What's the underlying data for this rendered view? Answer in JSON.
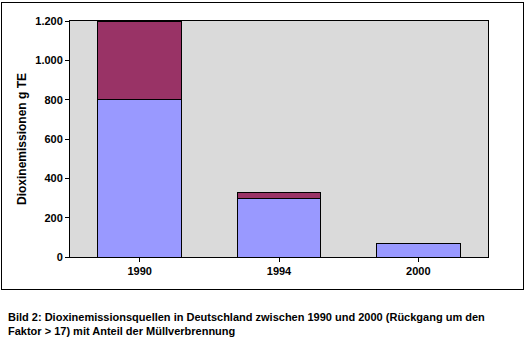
{
  "chart_data": {
    "type": "bar",
    "stacked": true,
    "y_label": "Dioxinemissionen g TE",
    "annotations": [
      "Bild 2: Dioxinemissionsquellen in Deutschland zwischen 1990 und 2000 (Rückgang um den Faktor > 17) mit Anteil der Müllverbrennung"
    ],
    "categories": [
      "1990",
      "1994",
      "2000"
    ],
    "series": [
      {
        "color": "#9999ff",
        "values": [
          800,
          295,
          70
        ]
      },
      {
        "color": "#993366",
        "values": [
          400,
          35,
          0
        ]
      }
    ],
    "ylim": [
      0,
      1200
    ],
    "yticks": [
      0,
      200,
      400,
      600,
      800,
      {
        "value": 1000,
        "label": "1.000"
      },
      {
        "value": 1200,
        "label": "1.200"
      }
    ],
    "grid": false
  }
}
